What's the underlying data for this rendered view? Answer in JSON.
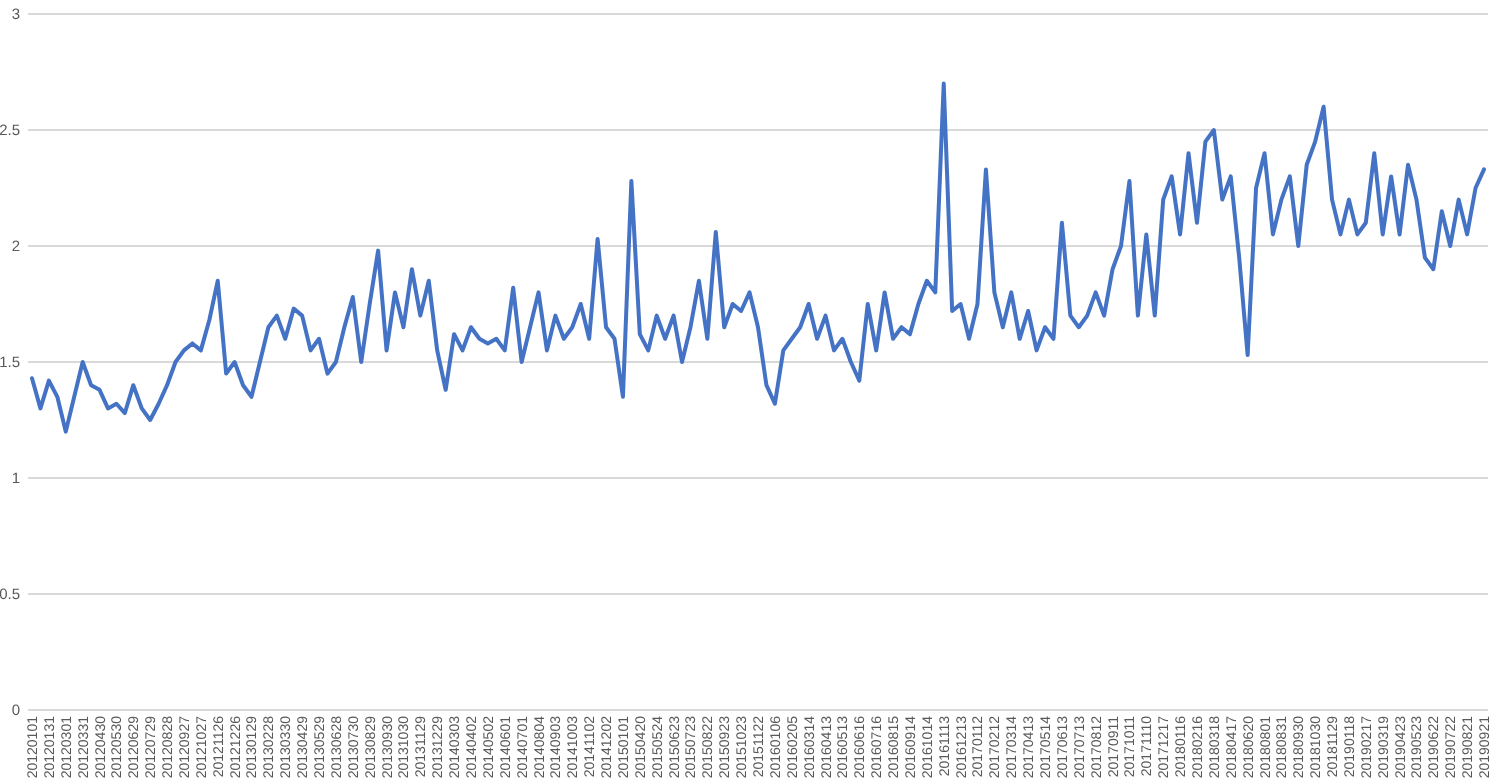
{
  "chart_data": {
    "type": "line",
    "color": "#4472c4",
    "grid": "y",
    "line_style": "solid",
    "marker": "none",
    "categories": [
      "20120101",
      null,
      "20120131",
      null,
      "20120301",
      null,
      "20120331",
      null,
      "20120430",
      null,
      "20120530",
      null,
      "20120629",
      null,
      "20120729",
      null,
      "20120828",
      null,
      "20120927",
      null,
      "20121027",
      null,
      "20121126",
      null,
      "20121226",
      null,
      "20130129",
      null,
      "20130228",
      null,
      "20130330",
      null,
      "20130429",
      null,
      "20130529",
      null,
      "20130628",
      null,
      "20130730",
      null,
      "20130829",
      null,
      "20130930",
      null,
      "20131030",
      null,
      "20131129",
      null,
      "20131229",
      null,
      "20140303",
      null,
      "20140402",
      null,
      "20140502",
      null,
      "20140601",
      null,
      "20140701",
      null,
      "20140804",
      null,
      "20140903",
      null,
      "20141003",
      null,
      "20141102",
      null,
      "20141202",
      null,
      "20150101",
      null,
      "20150420",
      null,
      "20150524",
      null,
      "20150623",
      null,
      "20150723",
      null,
      "20150822",
      null,
      "20150923",
      null,
      "20151023",
      null,
      "20151122",
      null,
      "20160106",
      null,
      "20160205",
      null,
      "20160314",
      null,
      "20160413",
      null,
      "20160513",
      null,
      "20160616",
      null,
      "20160716",
      null,
      "20160815",
      null,
      "20160914",
      null,
      "20161014",
      null,
      "20161113",
      null,
      "20161213",
      null,
      "20170112",
      null,
      "20170212",
      null,
      "20170314",
      null,
      "20170413",
      null,
      "20170514",
      null,
      "20170613",
      null,
      "20170713",
      null,
      "20170812",
      null,
      "20170911",
      null,
      "20171011",
      null,
      "20171110",
      null,
      "20171217",
      null,
      "20180116",
      null,
      "20180216",
      null,
      "20180318",
      null,
      "20180417",
      null,
      "20180620",
      null,
      "20180801",
      null,
      "20180831",
      null,
      "20180930",
      null,
      "20181030",
      null,
      "20181129",
      null,
      "20190118",
      null,
      "20190217",
      null,
      "20190319",
      null,
      "20190423",
      null,
      "20190523",
      null,
      "20190622",
      null,
      "20190722",
      null,
      "20190821",
      null,
      "20190921"
    ],
    "values": [
      1.43,
      1.3,
      1.42,
      1.35,
      1.2,
      1.35,
      1.5,
      1.4,
      1.38,
      1.3,
      1.32,
      1.28,
      1.4,
      1.3,
      1.25,
      1.32,
      1.4,
      1.5,
      1.55,
      1.58,
      1.55,
      1.68,
      1.85,
      1.45,
      1.5,
      1.4,
      1.35,
      1.5,
      1.65,
      1.7,
      1.6,
      1.73,
      1.7,
      1.55,
      1.6,
      1.45,
      1.5,
      1.65,
      1.78,
      1.5,
      1.75,
      1.98,
      1.55,
      1.8,
      1.65,
      1.9,
      1.7,
      1.85,
      1.55,
      1.38,
      1.62,
      1.55,
      1.65,
      1.6,
      1.58,
      1.6,
      1.55,
      1.82,
      1.5,
      1.65,
      1.8,
      1.55,
      1.7,
      1.6,
      1.65,
      1.75,
      1.6,
      2.03,
      1.65,
      1.6,
      1.35,
      2.28,
      1.62,
      1.55,
      1.7,
      1.6,
      1.7,
      1.5,
      1.65,
      1.85,
      1.6,
      2.06,
      1.65,
      1.75,
      1.72,
      1.8,
      1.65,
      1.4,
      1.32,
      1.55,
      1.6,
      1.65,
      1.75,
      1.6,
      1.7,
      1.55,
      1.6,
      1.5,
      1.42,
      1.75,
      1.55,
      1.8,
      1.6,
      1.65,
      1.62,
      1.75,
      1.85,
      1.8,
      2.7,
      1.72,
      1.75,
      1.6,
      1.75,
      2.33,
      1.8,
      1.65,
      1.8,
      1.6,
      1.72,
      1.55,
      1.65,
      1.6,
      2.1,
      1.7,
      1.65,
      1.7,
      1.8,
      1.7,
      1.9,
      2.0,
      2.28,
      1.7,
      2.05,
      1.7,
      2.2,
      2.3,
      2.05,
      2.4,
      2.1,
      2.45,
      2.5,
      2.2,
      2.3,
      1.95,
      1.53,
      2.25,
      2.4,
      2.05,
      2.2,
      2.3,
      2.0,
      2.35,
      2.45,
      2.6,
      2.2,
      2.05,
      2.2,
      2.05,
      2.1,
      2.4,
      2.05,
      2.3,
      2.05,
      2.35,
      2.2,
      1.95,
      1.9,
      2.15,
      2.0,
      2.2,
      2.05,
      2.25,
      2.33
    ],
    "ylim": [
      0,
      3
    ],
    "yticks": [
      0,
      0.5,
      1,
      1.5,
      2,
      2.5,
      3
    ]
  }
}
